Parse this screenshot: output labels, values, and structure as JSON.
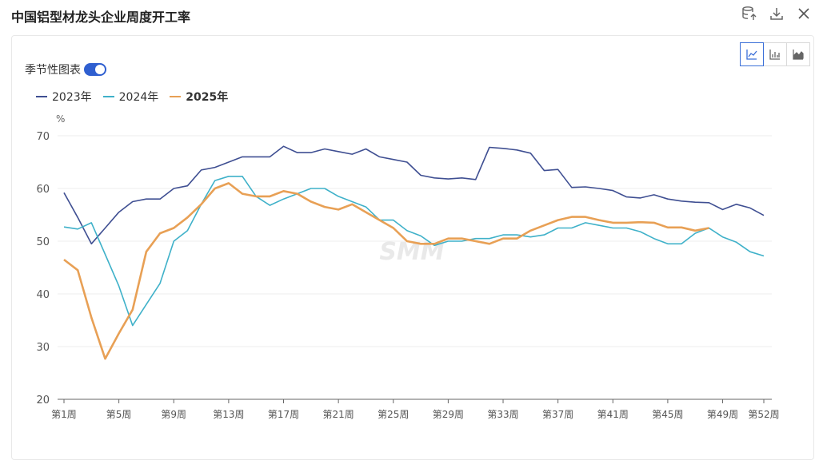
{
  "title": "中国铝型材龙头企业周度开工率",
  "toolbar": {
    "icons": [
      "database-export-icon",
      "download-icon",
      "close-icon"
    ]
  },
  "seasonal": {
    "label": "季节性图表",
    "enabled": true
  },
  "colors": {
    "2023年": "#3f4f92",
    "2024年": "#3fb1c9",
    "2025年": "#e8a055",
    "axis": "#999999",
    "grid": "#ececec"
  },
  "chart_data": {
    "type": "line",
    "ylabel": "%",
    "ylim": [
      20,
      70
    ],
    "yticks": [
      20,
      30,
      40,
      50,
      60,
      70
    ],
    "x_count": 52,
    "xtick_labels": [
      {
        "index": 1,
        "label": "第1周"
      },
      {
        "index": 5,
        "label": "第5周"
      },
      {
        "index": 9,
        "label": "第9周"
      },
      {
        "index": 13,
        "label": "第13周"
      },
      {
        "index": 17,
        "label": "第17周"
      },
      {
        "index": 21,
        "label": "第21周"
      },
      {
        "index": 25,
        "label": "第25周"
      },
      {
        "index": 29,
        "label": "第29周"
      },
      {
        "index": 33,
        "label": "第33周"
      },
      {
        "index": 37,
        "label": "第37周"
      },
      {
        "index": 41,
        "label": "第41周"
      },
      {
        "index": 45,
        "label": "第45周"
      },
      {
        "index": 49,
        "label": "第49周"
      },
      {
        "index": 52,
        "label": "第52周"
      }
    ],
    "series": [
      {
        "name": "2023年",
        "values": [
          59.2,
          54.5,
          49.5,
          52.5,
          55.5,
          57.5,
          58.0,
          58.0,
          60.0,
          60.5,
          63.5,
          64.0,
          65.0,
          66.0,
          66.0,
          66.0,
          68.0,
          66.8,
          66.8,
          67.5,
          67.0,
          66.5,
          67.5,
          66.0,
          65.5,
          65.0,
          62.5,
          62.0,
          61.8,
          62.0,
          61.7,
          67.8,
          67.6,
          67.3,
          66.7,
          63.4,
          63.6,
          60.2,
          60.3,
          60.0,
          59.6,
          58.4,
          58.2,
          58.8,
          58.0,
          57.6,
          57.4,
          57.3,
          56.0,
          57.0,
          56.3,
          54.9
        ]
      },
      {
        "name": "2024年",
        "values": [
          52.7,
          52.3,
          53.5,
          47.5,
          41.5,
          34.0,
          38.0,
          42.0,
          50.0,
          52.0,
          57.0,
          61.5,
          62.3,
          62.3,
          58.5,
          56.8,
          58.0,
          59.0,
          60.0,
          60.0,
          58.5,
          57.5,
          56.5,
          54.0,
          54.0,
          52.0,
          51.0,
          49.2,
          50.0,
          50.0,
          50.5,
          50.5,
          51.2,
          51.2,
          50.8,
          51.2,
          52.5,
          52.5,
          53.5,
          53.0,
          52.5,
          52.5,
          51.8,
          50.5,
          49.5,
          49.5,
          51.5,
          52.5,
          50.8,
          49.8,
          48.0,
          47.2
        ]
      },
      {
        "name": "2025年",
        "values": [
          46.5,
          44.5,
          35.5,
          27.7,
          32.5,
          37.0,
          48.0,
          51.5,
          52.5,
          54.5,
          57.0,
          60.0,
          61.0,
          59.0,
          58.5,
          58.5,
          59.5,
          59.0,
          57.5,
          56.5,
          56.0,
          57.0,
          55.5,
          54.0,
          52.5,
          50.0,
          49.5,
          49.5,
          50.5,
          50.5,
          50.0,
          49.5,
          50.5,
          50.5,
          52.0,
          53.0,
          54.0,
          54.6,
          54.6,
          54.0,
          53.5,
          53.5,
          53.6,
          53.5,
          52.6,
          52.6,
          52.0,
          52.5
        ]
      }
    ],
    "watermark": "SMM"
  }
}
